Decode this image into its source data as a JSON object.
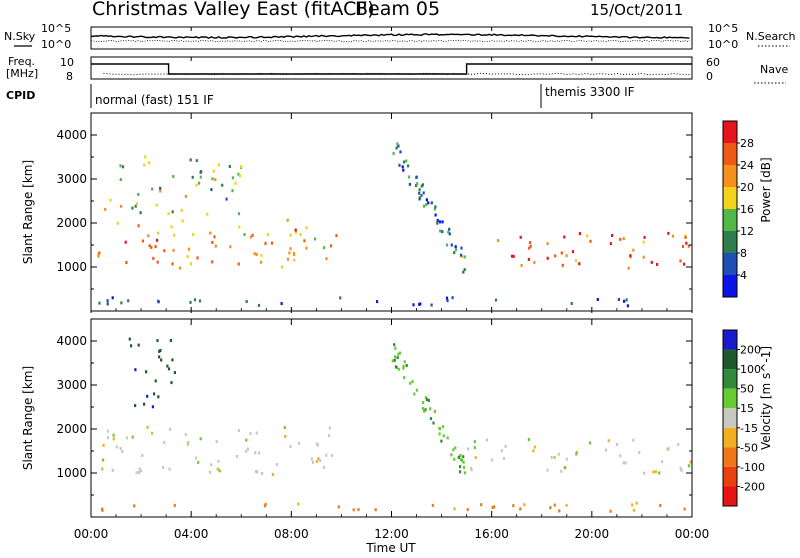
{
  "header": {
    "title": "Christmas Valley East (fitACF)",
    "beam": "Beam 05",
    "date": "15/Oct/2011"
  },
  "params": {
    "nsky_label": "N.Sky",
    "nsearch_label": "N.Search",
    "freq_label_1": "Freq.",
    "freq_label_2": "[MHz]",
    "nave_label": "Nave",
    "cpid_label": "CPID",
    "noise_ticks_left": [
      "10^5",
      "10^0"
    ],
    "noise_ticks_right": [
      "10^5",
      "10^0"
    ],
    "freq_ticks": [
      "10",
      "8"
    ],
    "nave_ticks": [
      "60",
      "0"
    ]
  },
  "modes": [
    {
      "label": "normal (fast) 151 IF",
      "start_hour": 0
    },
    {
      "label": "themis 3300 IF",
      "start_hour": 18.1
    }
  ],
  "chart_data": [
    {
      "type": "heatmap",
      "title": "",
      "xlabel": "Time UT",
      "ylabel": "Slant Range [km]",
      "xlim_hours": [
        0,
        24
      ],
      "x_ticks": [
        "00:00",
        "04:00",
        "08:00",
        "12:00",
        "16:00",
        "20:00",
        "00:00"
      ],
      "ylim": [
        0,
        4500
      ],
      "y_ticks": [
        1000,
        2000,
        3000,
        4000
      ],
      "colorbar": {
        "label": "Power [dB]",
        "ticks": [
          4,
          8,
          12,
          16,
          20,
          24,
          28
        ],
        "range": [
          0,
          32
        ],
        "colors": [
          "#0a14e6",
          "#1e4fb4",
          "#2e7d4f",
          "#52b84a",
          "#f2d21a",
          "#f5901c",
          "#f05a14",
          "#e6141e"
        ]
      },
      "echo_regions": [
        {
          "name": "main band",
          "x_hours": [
            0.2,
            9.8
          ],
          "range_km": [
            1000,
            2100
          ],
          "power_db": 22
        },
        {
          "name": "upper band",
          "x_hours": [
            0.5,
            6.0
          ],
          "range_km": [
            2200,
            3600
          ],
          "power_db": 14
        },
        {
          "name": "descending trace",
          "x_hours": [
            12.0,
            15.0
          ],
          "range_km": [
            1000,
            3800
          ],
          "power_db": 10
        },
        {
          "name": "evening band",
          "x_hours": [
            15.0,
            24.0
          ],
          "range_km": [
            1000,
            1800
          ],
          "power_db": 26
        },
        {
          "name": "near range",
          "x_hours": [
            0.0,
            24.0
          ],
          "range_km": [
            150,
            350
          ],
          "power_db": 6
        }
      ]
    },
    {
      "type": "heatmap",
      "title": "",
      "xlabel": "Time UT",
      "ylabel": "Slant Range [km]",
      "xlim_hours": [
        0,
        24
      ],
      "x_ticks": [
        "00:00",
        "04:00",
        "08:00",
        "12:00",
        "16:00",
        "20:00",
        "00:00"
      ],
      "ylim": [
        0,
        4500
      ],
      "y_ticks": [
        1000,
        2000,
        3000,
        4000
      ],
      "colorbar": {
        "label": "Velocity [m s^-1]",
        "ticks": [
          200,
          100,
          50,
          15,
          -15,
          -50,
          -100,
          -200
        ],
        "range": [
          -250,
          250
        ],
        "colors": [
          "#1a1acc",
          "#1e5a2e",
          "#2f8a3a",
          "#66cc33",
          "#c8c8c0",
          "#f0b020",
          "#f07818",
          "#e84010",
          "#e61414"
        ]
      },
      "echo_regions": [
        {
          "name": "main band",
          "x_hours": [
            0.2,
            9.8
          ],
          "range_km": [
            1000,
            2100
          ],
          "velocity_ms": 0
        },
        {
          "name": "upper band",
          "x_hours": [
            1.5,
            3.5
          ],
          "range_km": [
            2400,
            4200
          ],
          "velocity_ms": 180
        },
        {
          "name": "descending trace",
          "x_hours": [
            12.0,
            15.0
          ],
          "range_km": [
            1000,
            3800
          ],
          "velocity_ms": 40
        },
        {
          "name": "evening band",
          "x_hours": [
            15.0,
            24.0
          ],
          "range_km": [
            1000,
            1800
          ],
          "velocity_ms": 0
        },
        {
          "name": "near range",
          "x_hours": [
            0.0,
            24.0
          ],
          "range_km": [
            150,
            350
          ],
          "velocity_ms": -60
        }
      ]
    }
  ]
}
